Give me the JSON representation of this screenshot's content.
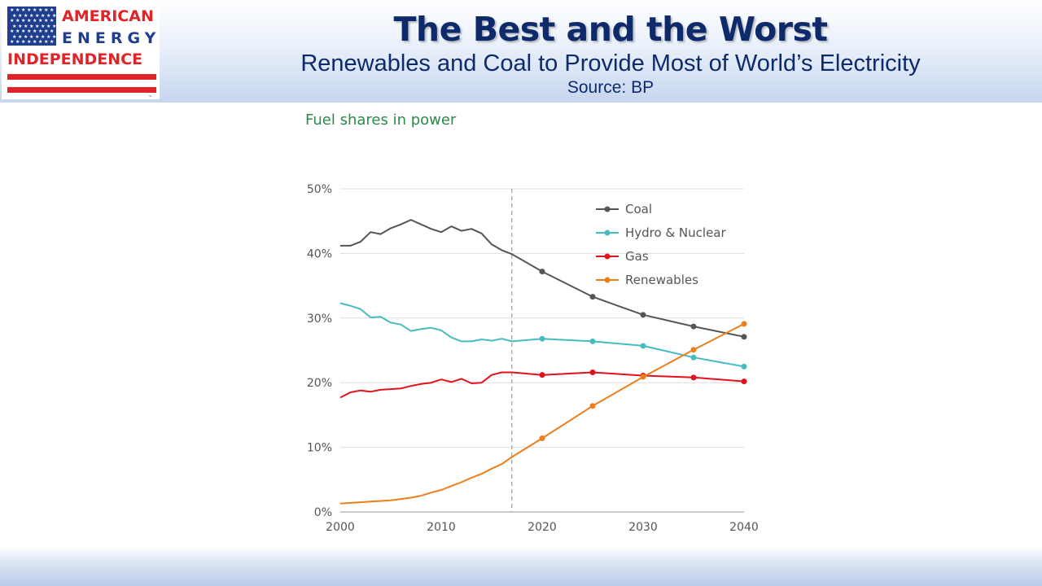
{
  "logo": {
    "line1": "AMERICAN",
    "line2": "ENERGY",
    "line3": "INDEPENDENCE",
    "tm": "™",
    "colors": {
      "red": "#e02428",
      "blue": "#1f3f8e"
    }
  },
  "header": {
    "title": "The Best and the Worst",
    "subtitle": "Renewables and Coal to Provide Most of World’s Electricity",
    "source": "Source: BP"
  },
  "chart_heading": "Fuel shares in power",
  "chart_data": {
    "type": "line",
    "title": "Fuel shares in power",
    "xlabel": "",
    "ylabel": "",
    "xlim": [
      2000,
      2040
    ],
    "ylim": [
      0,
      50
    ],
    "x_ticks": [
      "2000",
      "2010",
      "2020",
      "2030",
      "2040"
    ],
    "y_ticks": [
      "0%",
      "10%",
      "20%",
      "30%",
      "40%",
      "50%"
    ],
    "grid": "horizontal",
    "legend_position": "top-right",
    "divider_x": 2017,
    "marker_years": [
      2020,
      2025,
      2030,
      2035,
      2040
    ],
    "series": [
      {
        "name": "Coal",
        "color": "#555555",
        "x": [
          2000,
          2001,
          2002,
          2003,
          2004,
          2005,
          2006,
          2007,
          2008,
          2009,
          2010,
          2011,
          2012,
          2013,
          2014,
          2015,
          2016,
          2017,
          2020,
          2025,
          2030,
          2035,
          2040
        ],
        "y": [
          41.2,
          41.2,
          41.8,
          43.3,
          43.0,
          43.9,
          44.5,
          45.2,
          44.5,
          43.8,
          43.3,
          44.2,
          43.5,
          43.8,
          43.1,
          41.4,
          40.5,
          39.9,
          37.2,
          33.3,
          30.5,
          28.7,
          27.1
        ]
      },
      {
        "name": "Hydro & Nuclear",
        "color": "#46bcc0",
        "x": [
          2000,
          2001,
          2002,
          2003,
          2004,
          2005,
          2006,
          2007,
          2008,
          2009,
          2010,
          2011,
          2012,
          2013,
          2014,
          2015,
          2016,
          2017,
          2020,
          2025,
          2030,
          2035,
          2040
        ],
        "y": [
          32.3,
          31.9,
          31.4,
          30.1,
          30.2,
          29.3,
          29.0,
          28.0,
          28.3,
          28.5,
          28.1,
          27.0,
          26.4,
          26.4,
          26.7,
          26.5,
          26.8,
          26.4,
          26.8,
          26.4,
          25.7,
          23.9,
          22.5
        ]
      },
      {
        "name": "Gas",
        "color": "#e2121b",
        "x": [
          2000,
          2001,
          2002,
          2003,
          2004,
          2005,
          2006,
          2007,
          2008,
          2009,
          2010,
          2011,
          2012,
          2013,
          2014,
          2015,
          2016,
          2017,
          2020,
          2025,
          2030,
          2035,
          2040
        ],
        "y": [
          17.7,
          18.5,
          18.8,
          18.6,
          18.9,
          19.0,
          19.1,
          19.5,
          19.8,
          20.0,
          20.5,
          20.1,
          20.6,
          19.9,
          20.0,
          21.2,
          21.6,
          21.6,
          21.2,
          21.6,
          21.1,
          20.8,
          20.2
        ]
      },
      {
        "name": "Renewables",
        "color": "#ef7d1a",
        "x": [
          2000,
          2001,
          2002,
          2003,
          2004,
          2005,
          2006,
          2007,
          2008,
          2009,
          2010,
          2011,
          2012,
          2013,
          2014,
          2015,
          2016,
          2017,
          2020,
          2025,
          2030,
          2035,
          2040
        ],
        "y": [
          1.3,
          1.4,
          1.5,
          1.6,
          1.7,
          1.8,
          2.0,
          2.2,
          2.5,
          3.0,
          3.4,
          4.0,
          4.6,
          5.3,
          5.9,
          6.7,
          7.4,
          8.5,
          11.4,
          16.4,
          20.9,
          25.1,
          29.1
        ]
      }
    ]
  }
}
